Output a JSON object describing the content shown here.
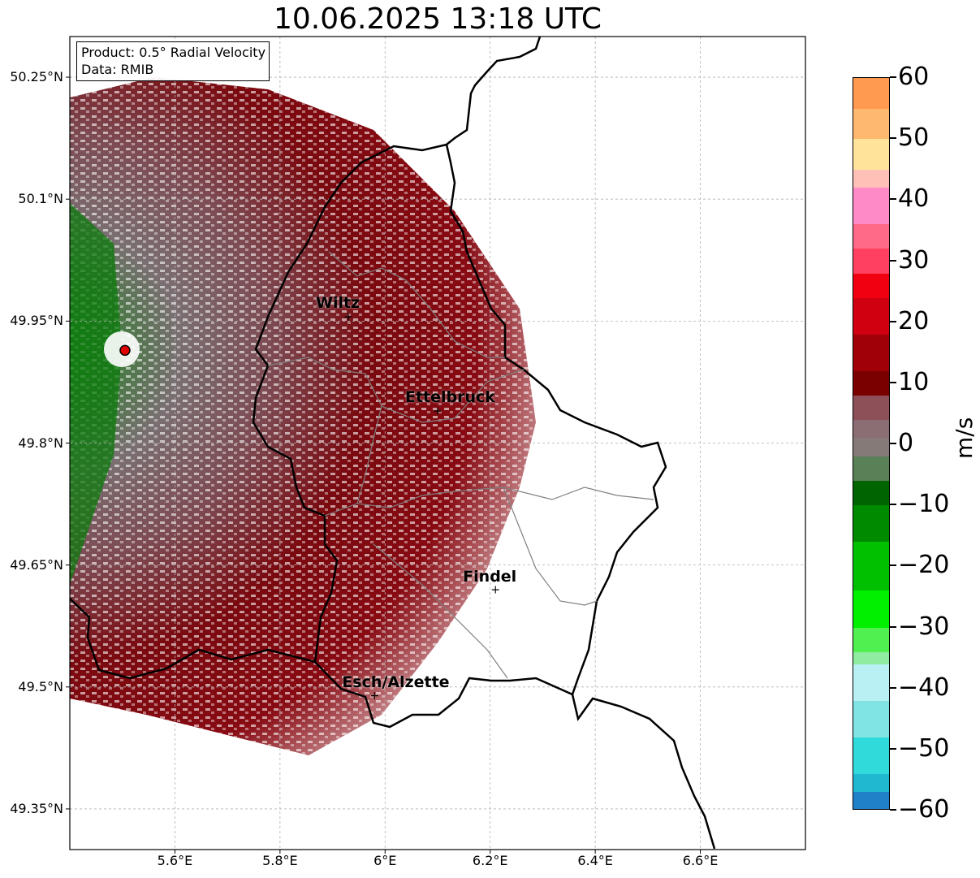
{
  "title": "10.06.2025 13:18 UTC",
  "info_box": {
    "product": "Product: 0.5° Radial Velocity",
    "source": "Data: RMIB"
  },
  "map": {
    "lon_range": [
      5.4,
      6.8
    ],
    "lat_range": [
      49.3,
      50.3
    ],
    "lat_ticks": [
      {
        "value": 50.25,
        "label": "50.25°N"
      },
      {
        "value": 50.1,
        "label": "50.1°N"
      },
      {
        "value": 49.95,
        "label": "49.95°N"
      },
      {
        "value": 49.8,
        "label": "49.8°N"
      },
      {
        "value": 49.65,
        "label": "49.65°N"
      },
      {
        "value": 49.5,
        "label": "49.5°N"
      },
      {
        "value": 49.35,
        "label": "49.35°N"
      }
    ],
    "lon_ticks": [
      {
        "value": 5.6,
        "label": "5.6°E"
      },
      {
        "value": 5.8,
        "label": "5.8°E"
      },
      {
        "value": 6.0,
        "label": "6°E"
      },
      {
        "value": 6.2,
        "label": "6.2°E"
      },
      {
        "value": 6.4,
        "label": "6.4°E"
      },
      {
        "value": 6.6,
        "label": "6.6°E"
      }
    ],
    "radar_site": {
      "lon": 5.505,
      "lat": 49.914
    },
    "cities": [
      {
        "name": "Wiltz",
        "lon": 5.93,
        "lat": 49.966
      },
      {
        "name": "Ettelbruck",
        "lon": 6.1,
        "lat": 49.85
      },
      {
        "name": "Findel",
        "lon": 6.21,
        "lat": 49.63
      },
      {
        "name": "Esch/Alzette",
        "lon": 5.98,
        "lat": 49.5
      }
    ]
  },
  "colorbar": {
    "unit": "m/s",
    "min": -60,
    "max": 60,
    "tick_labels": [
      {
        "value": 60,
        "label": "60"
      },
      {
        "value": 50,
        "label": "50"
      },
      {
        "value": 40,
        "label": "40"
      },
      {
        "value": 30,
        "label": "30"
      },
      {
        "value": 20,
        "label": "20"
      },
      {
        "value": 10,
        "label": "10"
      },
      {
        "value": 0,
        "label": "0"
      },
      {
        "value": -10,
        "label": "−10"
      },
      {
        "value": -20,
        "label": "−20"
      },
      {
        "value": -30,
        "label": "−30"
      },
      {
        "value": -40,
        "label": "−40"
      },
      {
        "value": -50,
        "label": "−50"
      },
      {
        "value": -60,
        "label": "−60"
      }
    ],
    "stops": [
      {
        "from": 55,
        "to": 60,
        "color": "#ff9a50"
      },
      {
        "from": 50,
        "to": 55,
        "color": "#ffb870"
      },
      {
        "from": 45,
        "to": 50,
        "color": "#ffe39a"
      },
      {
        "from": 42,
        "to": 45,
        "color": "#ffc0b8"
      },
      {
        "from": 36,
        "to": 42,
        "color": "#ff8ac8"
      },
      {
        "from": 32,
        "to": 36,
        "color": "#ff6a88"
      },
      {
        "from": 28,
        "to": 32,
        "color": "#ff4060"
      },
      {
        "from": 24,
        "to": 28,
        "color": "#f00010"
      },
      {
        "from": 18,
        "to": 24,
        "color": "#d00010"
      },
      {
        "from": 12,
        "to": 18,
        "color": "#a00008"
      },
      {
        "from": 8,
        "to": 12,
        "color": "#7a0000"
      },
      {
        "from": 4,
        "to": 8,
        "color": "#8e5058"
      },
      {
        "from": 1,
        "to": 4,
        "color": "#8a6e74"
      },
      {
        "from": -2,
        "to": 1,
        "color": "#857a78"
      },
      {
        "from": -6,
        "to": -2,
        "color": "#5a8058"
      },
      {
        "from": -10,
        "to": -6,
        "color": "#006400"
      },
      {
        "from": -16,
        "to": -10,
        "color": "#008a00"
      },
      {
        "from": -24,
        "to": -16,
        "color": "#00c000"
      },
      {
        "from": -30,
        "to": -24,
        "color": "#00f000"
      },
      {
        "from": -34,
        "to": -30,
        "color": "#50f050"
      },
      {
        "from": -36,
        "to": -34,
        "color": "#90eca0"
      },
      {
        "from": -42,
        "to": -36,
        "color": "#b8f0f4"
      },
      {
        "from": -48,
        "to": -42,
        "color": "#80e4e4"
      },
      {
        "from": -54,
        "to": -48,
        "color": "#30dada"
      },
      {
        "from": -57,
        "to": -54,
        "color": "#20b8d0"
      },
      {
        "from": -60,
        "to": -57,
        "color": "#2080c8"
      }
    ]
  }
}
